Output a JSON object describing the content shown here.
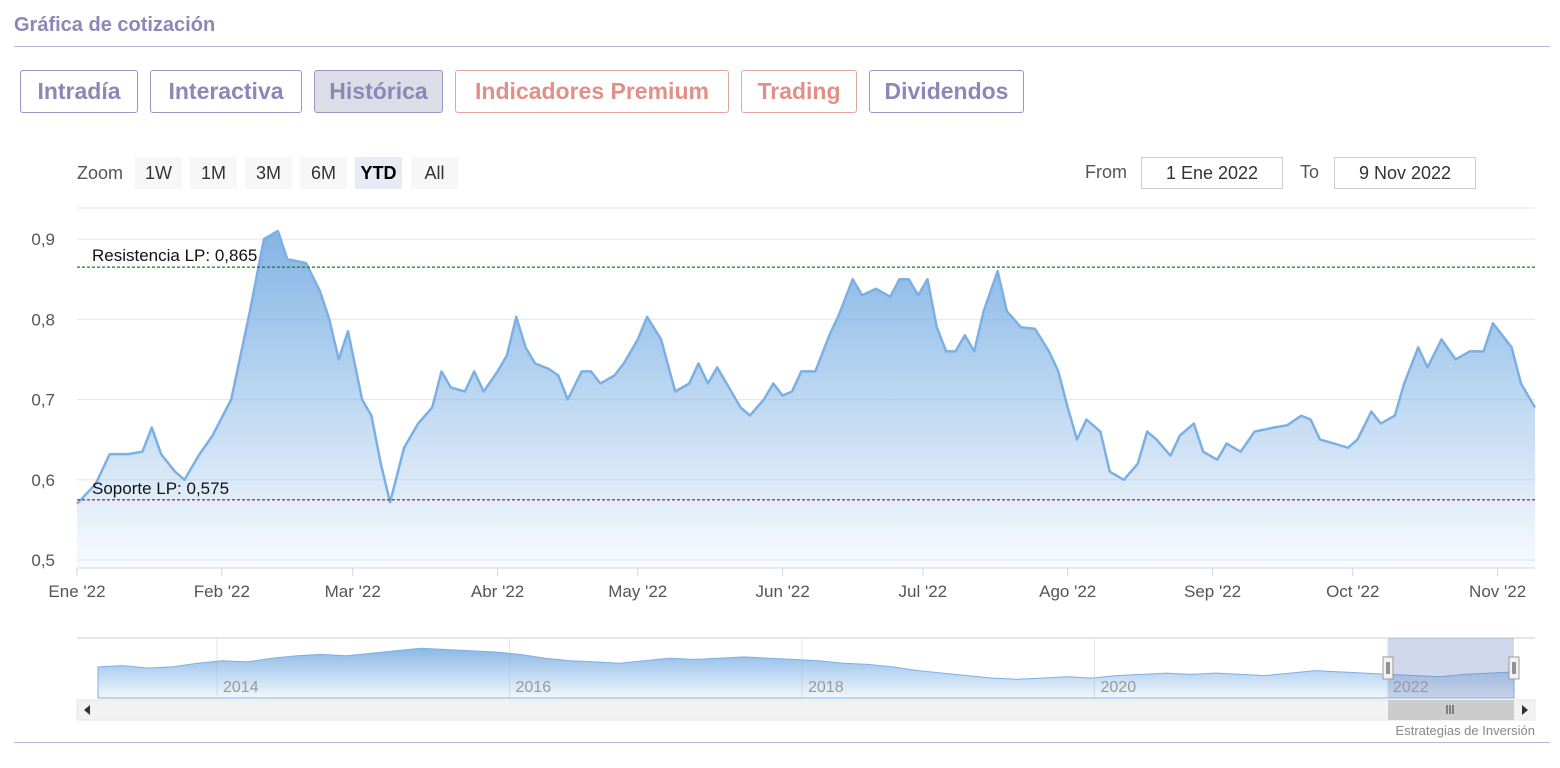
{
  "header": {
    "title": "Gráfica de cotización"
  },
  "tabs": [
    {
      "label": "Intradía"
    },
    {
      "label": "Interactiva"
    },
    {
      "label": "Histórica"
    },
    {
      "label": "Indicadores Premium"
    },
    {
      "label": "Trading"
    },
    {
      "label": "Dividendos"
    }
  ],
  "zoom": {
    "label": "Zoom",
    "buttons": [
      "1W",
      "1M",
      "3M",
      "6M",
      "YTD",
      "All"
    ],
    "selected": "YTD"
  },
  "range": {
    "from_label": "From",
    "from_value": "1 Ene 2022",
    "to_label": "To",
    "to_value": "9 Nov 2022"
  },
  "chart_data": {
    "type": "area",
    "x_start": "2022-01-01",
    "x_end": "2022-11-09",
    "ylim": [
      0.49,
      0.93
    ],
    "yticks": [
      "0,5",
      "0,6",
      "0,7",
      "0,8",
      "0,9"
    ],
    "ytick_values": [
      0.5,
      0.6,
      0.7,
      0.8,
      0.9
    ],
    "xticks": [
      "Ene '22",
      "Feb '22",
      "Mar '22",
      "Abr '22",
      "May '22",
      "Jun '22",
      "Jul '22",
      "Ago '22",
      "Sep '22",
      "Oct '22",
      "Nov '22"
    ],
    "xtick_dates": [
      "2022-01-01",
      "2022-02-01",
      "2022-03-01",
      "2022-04-01",
      "2022-05-01",
      "2022-06-01",
      "2022-07-01",
      "2022-08-01",
      "2022-09-01",
      "2022-10-01",
      "2022-11-01"
    ],
    "series": [
      {
        "color": "#7cb0e4",
        "points": [
          [
            "2022-01-01",
            0.57
          ],
          [
            "2022-01-05",
            0.595
          ],
          [
            "2022-01-08",
            0.632
          ],
          [
            "2022-01-12",
            0.632
          ],
          [
            "2022-01-15",
            0.635
          ],
          [
            "2022-01-17",
            0.665
          ],
          [
            "2022-01-19",
            0.632
          ],
          [
            "2022-01-22",
            0.61
          ],
          [
            "2022-01-24",
            0.6
          ],
          [
            "2022-01-27",
            0.63
          ],
          [
            "2022-01-30",
            0.655
          ],
          [
            "2022-02-03",
            0.7
          ],
          [
            "2022-02-07",
            0.81
          ],
          [
            "2022-02-10",
            0.9
          ],
          [
            "2022-02-13",
            0.91
          ],
          [
            "2022-02-15",
            0.875
          ],
          [
            "2022-02-19",
            0.87
          ],
          [
            "2022-02-22",
            0.835
          ],
          [
            "2022-02-24",
            0.8
          ],
          [
            "2022-02-26",
            0.75
          ],
          [
            "2022-02-28",
            0.785
          ],
          [
            "2022-03-03",
            0.7
          ],
          [
            "2022-03-05",
            0.68
          ],
          [
            "2022-03-07",
            0.62
          ],
          [
            "2022-03-09",
            0.572
          ],
          [
            "2022-03-12",
            0.64
          ],
          [
            "2022-03-15",
            0.67
          ],
          [
            "2022-03-18",
            0.69
          ],
          [
            "2022-03-20",
            0.735
          ],
          [
            "2022-03-22",
            0.715
          ],
          [
            "2022-03-25",
            0.71
          ],
          [
            "2022-03-27",
            0.735
          ],
          [
            "2022-03-29",
            0.71
          ],
          [
            "2022-04-01",
            0.735
          ],
          [
            "2022-04-03",
            0.755
          ],
          [
            "2022-04-05",
            0.803
          ],
          [
            "2022-04-07",
            0.765
          ],
          [
            "2022-04-09",
            0.745
          ],
          [
            "2022-04-12",
            0.738
          ],
          [
            "2022-04-14",
            0.73
          ],
          [
            "2022-04-16",
            0.7
          ],
          [
            "2022-04-19",
            0.735
          ],
          [
            "2022-04-21",
            0.735
          ],
          [
            "2022-04-23",
            0.72
          ],
          [
            "2022-04-26",
            0.73
          ],
          [
            "2022-04-28",
            0.745
          ],
          [
            "2022-05-01",
            0.775
          ],
          [
            "2022-05-03",
            0.803
          ],
          [
            "2022-05-06",
            0.775
          ],
          [
            "2022-05-09",
            0.71
          ],
          [
            "2022-05-12",
            0.72
          ],
          [
            "2022-05-14",
            0.745
          ],
          [
            "2022-05-16",
            0.72
          ],
          [
            "2022-05-18",
            0.74
          ],
          [
            "2022-05-20",
            0.72
          ],
          [
            "2022-05-23",
            0.69
          ],
          [
            "2022-05-25",
            0.68
          ],
          [
            "2022-05-28",
            0.7
          ],
          [
            "2022-05-30",
            0.72
          ],
          [
            "2022-06-01",
            0.705
          ],
          [
            "2022-06-03",
            0.71
          ],
          [
            "2022-06-05",
            0.735
          ],
          [
            "2022-06-08",
            0.735
          ],
          [
            "2022-06-11",
            0.78
          ],
          [
            "2022-06-13",
            0.805
          ],
          [
            "2022-06-16",
            0.85
          ],
          [
            "2022-06-18",
            0.83
          ],
          [
            "2022-06-21",
            0.838
          ],
          [
            "2022-06-24",
            0.828
          ],
          [
            "2022-06-26",
            0.85
          ],
          [
            "2022-06-28",
            0.85
          ],
          [
            "2022-06-30",
            0.83
          ],
          [
            "2022-07-02",
            0.85
          ],
          [
            "2022-07-04",
            0.79
          ],
          [
            "2022-07-06",
            0.76
          ],
          [
            "2022-07-08",
            0.76
          ],
          [
            "2022-07-10",
            0.78
          ],
          [
            "2022-07-12",
            0.76
          ],
          [
            "2022-07-14",
            0.81
          ],
          [
            "2022-07-17",
            0.86
          ],
          [
            "2022-07-19",
            0.81
          ],
          [
            "2022-07-22",
            0.79
          ],
          [
            "2022-07-25",
            0.788
          ],
          [
            "2022-07-28",
            0.76
          ],
          [
            "2022-07-30",
            0.735
          ],
          [
            "2022-08-01",
            0.69
          ],
          [
            "2022-08-03",
            0.65
          ],
          [
            "2022-08-05",
            0.675
          ],
          [
            "2022-08-08",
            0.66
          ],
          [
            "2022-08-10",
            0.61
          ],
          [
            "2022-08-13",
            0.6
          ],
          [
            "2022-08-16",
            0.62
          ],
          [
            "2022-08-18",
            0.66
          ],
          [
            "2022-08-20",
            0.65
          ],
          [
            "2022-08-23",
            0.63
          ],
          [
            "2022-08-25",
            0.655
          ],
          [
            "2022-08-28",
            0.67
          ],
          [
            "2022-08-30",
            0.635
          ],
          [
            "2022-09-02",
            0.625
          ],
          [
            "2022-09-04",
            0.645
          ],
          [
            "2022-09-07",
            0.635
          ],
          [
            "2022-09-10",
            0.66
          ],
          [
            "2022-09-14",
            0.665
          ],
          [
            "2022-09-17",
            0.668
          ],
          [
            "2022-09-20",
            0.68
          ],
          [
            "2022-09-22",
            0.675
          ],
          [
            "2022-09-24",
            0.65
          ],
          [
            "2022-09-27",
            0.645
          ],
          [
            "2022-09-30",
            0.64
          ],
          [
            "2022-10-02",
            0.65
          ],
          [
            "2022-10-05",
            0.685
          ],
          [
            "2022-10-07",
            0.67
          ],
          [
            "2022-10-10",
            0.68
          ],
          [
            "2022-10-12",
            0.72
          ],
          [
            "2022-10-15",
            0.765
          ],
          [
            "2022-10-17",
            0.74
          ],
          [
            "2022-10-20",
            0.775
          ],
          [
            "2022-10-23",
            0.75
          ],
          [
            "2022-10-26",
            0.76
          ],
          [
            "2022-10-29",
            0.76
          ],
          [
            "2022-10-31",
            0.795
          ],
          [
            "2022-11-02",
            0.78
          ],
          [
            "2022-11-04",
            0.765
          ],
          [
            "2022-11-06",
            0.72
          ],
          [
            "2022-11-09",
            0.69
          ]
        ]
      }
    ],
    "plot_lines": [
      {
        "label": "Resistencia LP: 0,865",
        "value": 0.865,
        "color": "#1a7a1a"
      },
      {
        "label": "Soporte LP: 0,575",
        "value": 0.575,
        "color": "#8b1a1a"
      }
    ],
    "navigator": {
      "xticks": [
        "2014",
        "2016",
        "2018",
        "2020",
        "2022"
      ]
    }
  },
  "credit": "Estrategias de Inversión"
}
